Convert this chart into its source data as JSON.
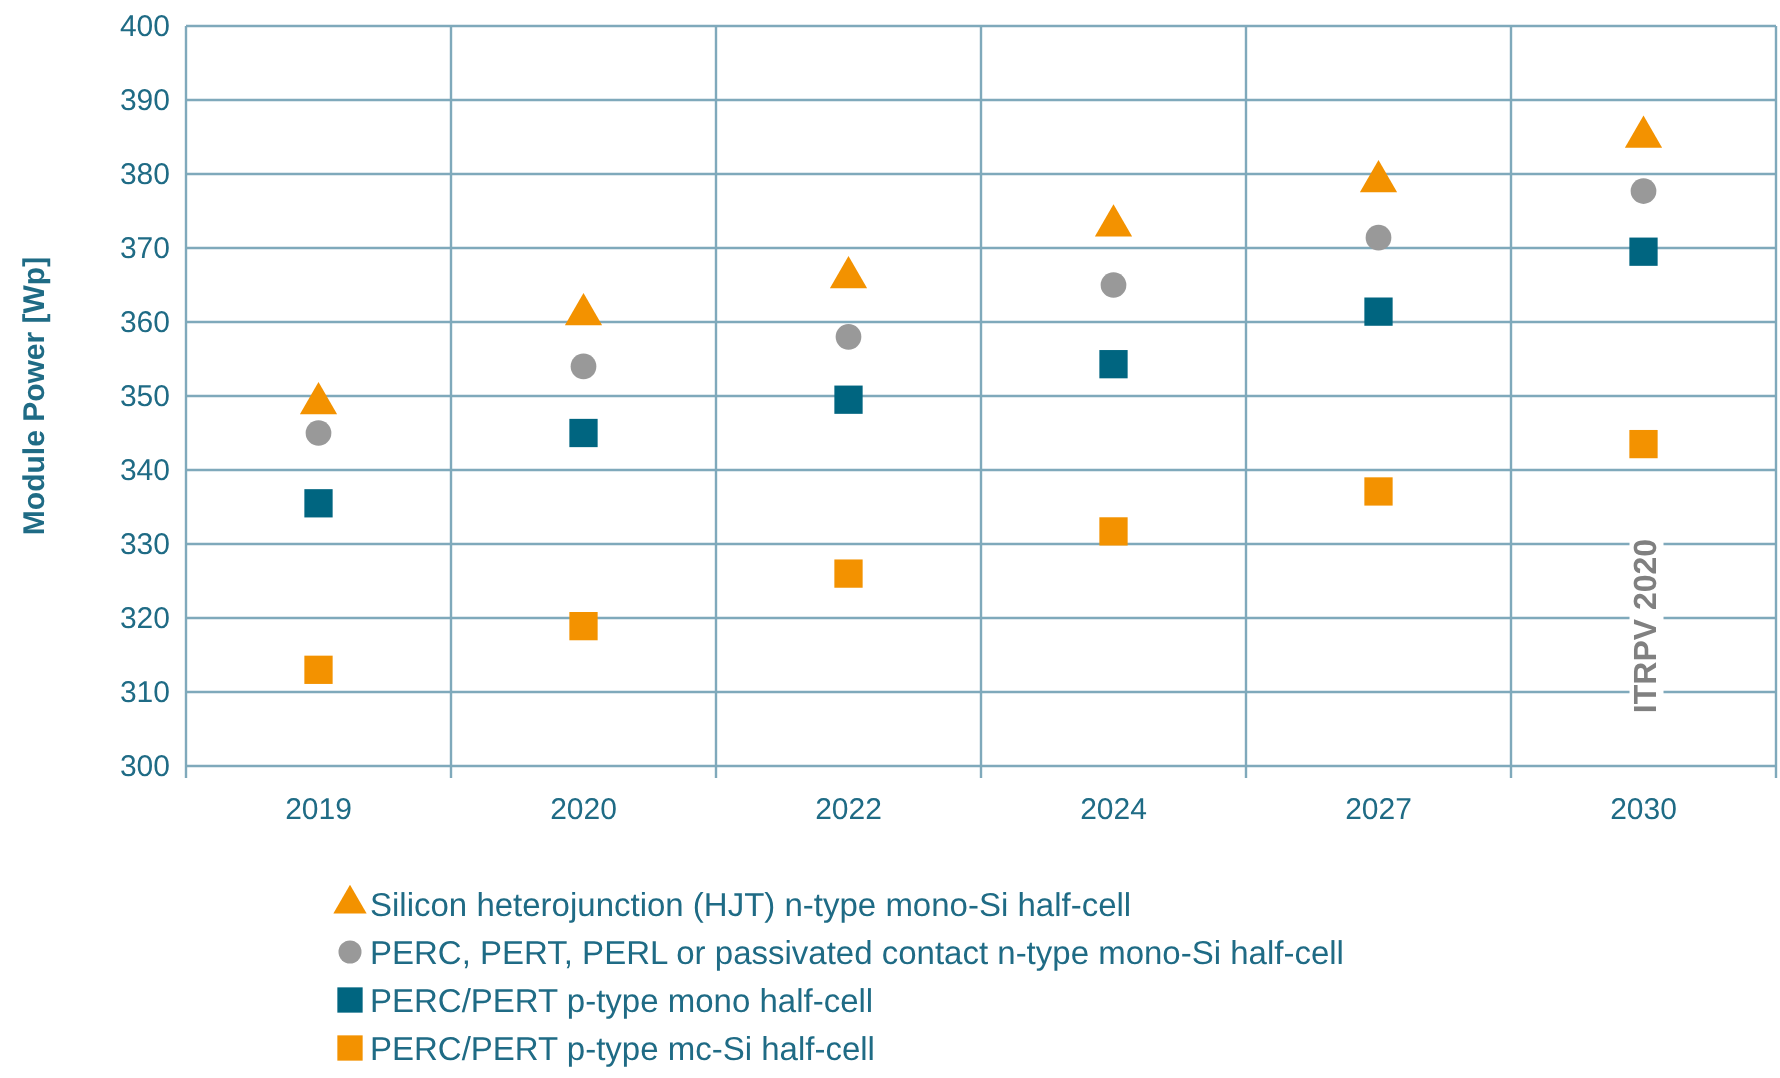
{
  "chart_data": {
    "type": "scatter",
    "ylabel": "Module Power [Wp]",
    "categories": [
      "2019",
      "2020",
      "2022",
      "2024",
      "2027",
      "2030"
    ],
    "ylim": [
      300,
      400
    ],
    "yticks": [
      300,
      310,
      320,
      330,
      340,
      350,
      360,
      370,
      380,
      390,
      400
    ],
    "grid": true,
    "legend": "bottom",
    "series": [
      {
        "name": "Silicon heterojunction (HJT) n-type mono-Si half-cell",
        "color": "#f39200",
        "marker": "triangle",
        "values": [
          349,
          361,
          366,
          373,
          379,
          385
        ]
      },
      {
        "name": "PERC, PERT, PERL or passivated contact n-type mono-Si half-cell",
        "color": "#999999",
        "marker": "circle",
        "values": [
          345,
          354,
          358,
          365,
          371.4,
          377.7
        ]
      },
      {
        "name": "PERC/PERT p-type mono half-cell",
        "color": "#006580",
        "marker": "square",
        "values": [
          335.5,
          345,
          349.5,
          354.3,
          361.4,
          369.5
        ]
      },
      {
        "name": "PERC/PERT p-type mc-Si half-cell",
        "color": "#f39200",
        "marker": "square",
        "values": [
          313,
          318.9,
          326,
          331.7,
          337.1,
          343.5
        ]
      }
    ],
    "annotations": [
      "ITRPV 2020"
    ]
  }
}
